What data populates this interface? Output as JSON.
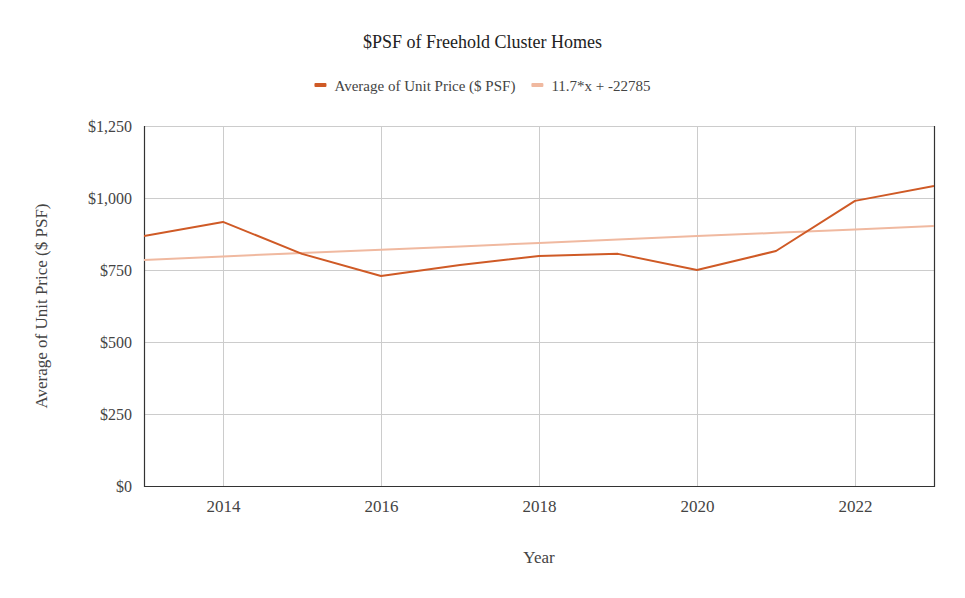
{
  "chart_data": {
    "type": "line",
    "title": "$PSF of Freehold Cluster Homes",
    "x_label": "Year",
    "y_label": "Average of Unit Price ($ PSF)",
    "x": [
      2013,
      2014,
      2015,
      2016,
      2017,
      2018,
      2019,
      2020,
      2021,
      2022,
      2023
    ],
    "series": [
      {
        "name": "Average of Unit Price ($ PSF)",
        "color": "#cf5a26",
        "values": [
          868,
          917,
          806,
          729,
          767,
          799,
          806,
          750,
          816,
          990,
          1042
        ]
      },
      {
        "name": "11.7*x + -22785",
        "color": "#f0b9a0",
        "values": [
          785,
          797,
          809,
          820,
          832,
          844,
          856,
          868,
          879,
          891,
          903
        ]
      }
    ],
    "xlim": [
      2013,
      2023
    ],
    "xticks": [
      2014,
      2016,
      2018,
      2020,
      2022
    ],
    "ylim": [
      0,
      1250
    ],
    "yticks": [
      {
        "value": 0,
        "label": "$0"
      },
      {
        "value": 250,
        "label": "$250"
      },
      {
        "value": 500,
        "label": "$500"
      },
      {
        "value": 750,
        "label": "$750"
      },
      {
        "value": 1000,
        "label": "$1,000"
      },
      {
        "value": 1250,
        "label": "$1,250"
      }
    ],
    "grid": true,
    "legend": "top"
  }
}
